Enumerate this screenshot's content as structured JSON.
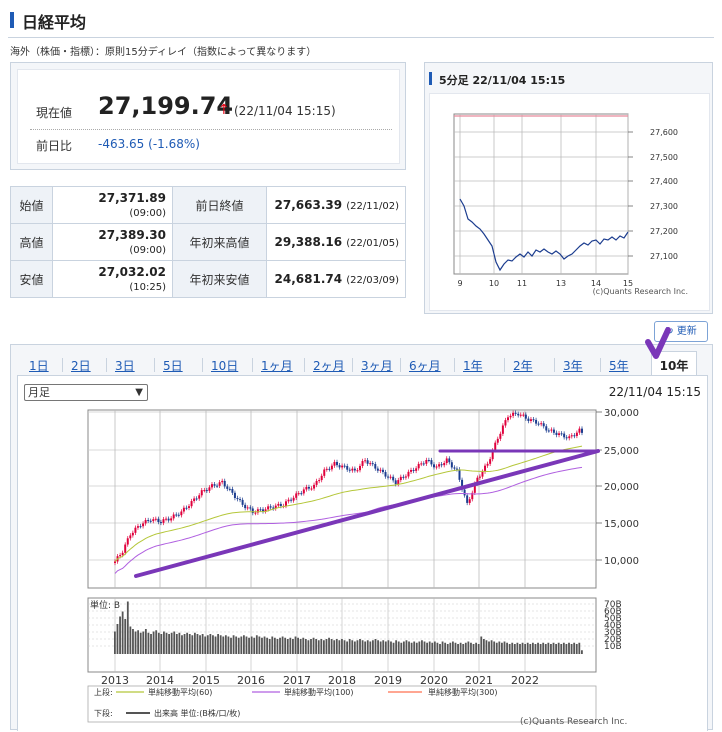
{
  "header": {
    "title": "日経平均",
    "note": "海外（株価・指標）：原則15分ディレイ（指数によって異なります）"
  },
  "price": {
    "label": "現在値",
    "value": "27,199.74",
    "timestamp": "(22/11/04 15:15)",
    "change_label": "前日比",
    "change_value": "-463.65 (-1.68%)"
  },
  "ohlc": [
    {
      "h1": "始値",
      "v1": "27,371.89",
      "t1": "(09:00)",
      "h2": "前日終値",
      "v2": "27,663.39",
      "t2": "(22/11/02)"
    },
    {
      "h1": "高値",
      "v1": "27,389.30",
      "t1": "(09:00)",
      "h2": "年初来高値",
      "v2": "29,388.16",
      "t2": "(22/01/05)"
    },
    {
      "h1": "安値",
      "v1": "27,032.02",
      "t1": "(10:25)",
      "h2": "年初来安値",
      "v2": "24,681.74",
      "t2": "(22/03/09)"
    }
  ],
  "intraday": {
    "title": "5分足 22/11/04 15:15",
    "y_ticks": [
      "27,600",
      "27,500",
      "27,400",
      "27,300",
      "27,200",
      "27,100"
    ],
    "x_ticks": [
      "9",
      "10",
      "11",
      "13",
      "14",
      "15"
    ],
    "credit": "(c)Quants Research Inc."
  },
  "toolbar": {
    "refresh_label": "更新"
  },
  "tabs": [
    "1日",
    "2日",
    "3日",
    "5日",
    "10日",
    "1ヶ月",
    "2ヶ月",
    "3ヶ月",
    "6ヶ月",
    "1年",
    "2年",
    "3年",
    "5年",
    "10年"
  ],
  "active_tab_index": 13,
  "main_chart": {
    "select_value": "月足",
    "timestamp": "22/11/04 15:15",
    "y_ticks": [
      "30,000",
      "25,000",
      "20,000",
      "15,000",
      "10,000"
    ],
    "vol_unit": "単位: B",
    "vol_ticks": [
      "70B",
      "60B",
      "50B",
      "40B",
      "30B",
      "20B",
      "10B"
    ],
    "x_ticks": [
      "2013",
      "2014",
      "2015",
      "2016",
      "2017",
      "2018",
      "2019",
      "2020",
      "2021",
      "2022"
    ],
    "legend_upper_label": "上段:",
    "legend_ma60": "単純移動平均(60)",
    "legend_ma100": "単純移動平均(100)",
    "legend_ma300": "単純移動平均(300)",
    "legend_lower_label": "下段:",
    "legend_volume": "出来高 単位:(B株/口/枚)",
    "credit": "(c)Quants Research Inc."
  },
  "colors": {
    "up": "#e0003c",
    "down": "#1c3d8f",
    "ma60": "#b5c73a",
    "ma100": "#b060e0",
    "ma300": "#ff7050",
    "annotation": "#7a37b8",
    "accent": "#1f5bb5"
  }
}
